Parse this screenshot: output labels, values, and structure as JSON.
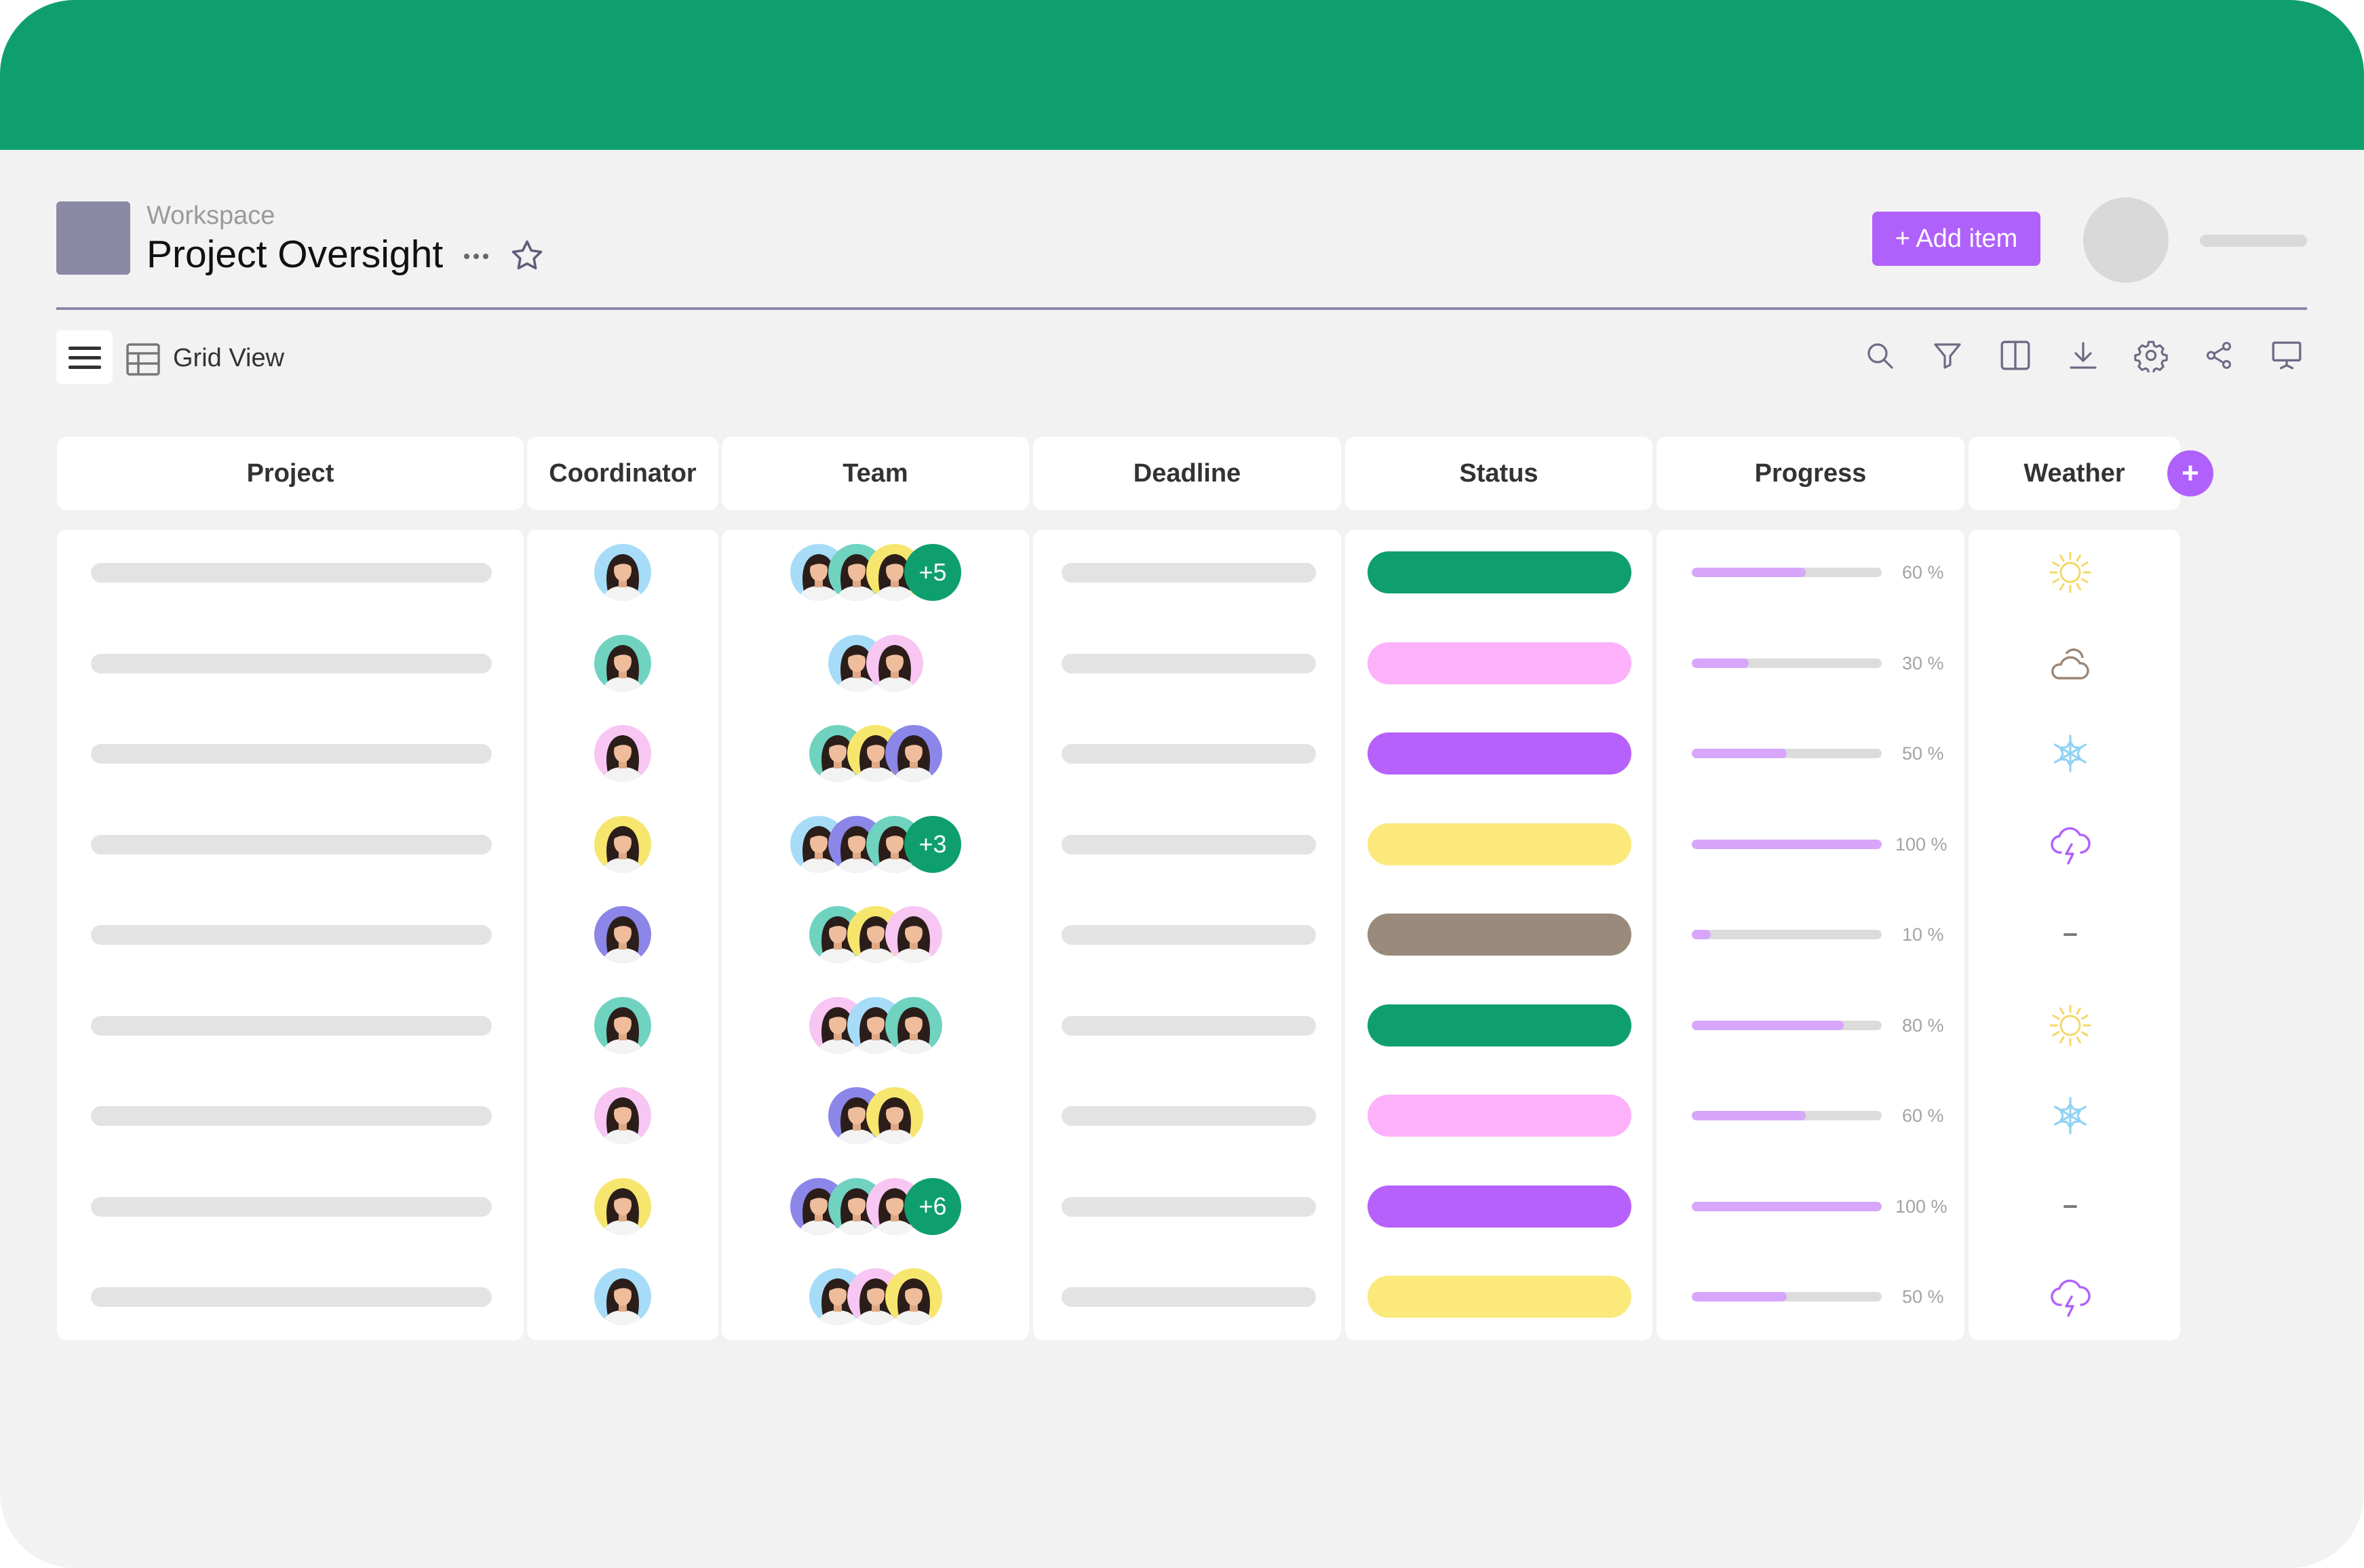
{
  "workspace": {
    "label": "Workspace",
    "title": "Project Oversight"
  },
  "header": {
    "add_item_label": "+ Add item"
  },
  "toolbar": {
    "view_label": "Grid View",
    "tools": [
      "search-icon",
      "filter-icon",
      "columns-icon",
      "download-icon",
      "settings-icon",
      "share-icon",
      "present-icon"
    ]
  },
  "columns": [
    "Project",
    "Coordinator",
    "Team",
    "Deadline",
    "Status",
    "Progress",
    "Weather"
  ],
  "add_column_label": "+",
  "colors": {
    "brand": "#0f9f6e",
    "accent": "#b061fb",
    "status_green": "#0f9f6e",
    "status_pink": "#fdb1fb",
    "status_purple": "#b661fb",
    "status_yellow": "#fbe97c",
    "status_brown": "#998a7c"
  },
  "rows": [
    {
      "coordinator": "blue",
      "team": [
        "blue",
        "teal",
        "yellow"
      ],
      "team_extra": "+5",
      "status": "#0f9f6e",
      "progress": 60,
      "progress_label": "60 %",
      "weather": "sun-icon"
    },
    {
      "coordinator": "teal",
      "team": [
        "blue",
        "pink"
      ],
      "team_extra": "",
      "status": "#fdb1fb",
      "progress": 30,
      "progress_label": "30 %",
      "weather": "partly-cloudy-icon"
    },
    {
      "coordinator": "pink",
      "team": [
        "teal",
        "yellow",
        "indigo"
      ],
      "team_extra": "",
      "status": "#b661fb",
      "progress": 50,
      "progress_label": "50 %",
      "weather": "snowflake-icon"
    },
    {
      "coordinator": "yellow",
      "team": [
        "blue",
        "indigo",
        "teal"
      ],
      "team_extra": "+3",
      "status": "#fbe97c",
      "progress": 100,
      "progress_label": "100 %",
      "weather": "storm-icon"
    },
    {
      "coordinator": "indigo",
      "team": [
        "teal",
        "yellow",
        "pink"
      ],
      "team_extra": "",
      "status": "#998a7c",
      "progress": 10,
      "progress_label": "10 %",
      "weather": "dash"
    },
    {
      "coordinator": "teal",
      "team": [
        "pink",
        "blue",
        "teal"
      ],
      "team_extra": "",
      "status": "#0f9f6e",
      "progress": 80,
      "progress_label": "80 %",
      "weather": "sun-icon"
    },
    {
      "coordinator": "pink",
      "team": [
        "indigo",
        "yellow"
      ],
      "team_extra": "",
      "status": "#fdb1fb",
      "progress": 60,
      "progress_label": "60 %",
      "weather": "snowflake-icon"
    },
    {
      "coordinator": "yellow",
      "team": [
        "indigo",
        "teal",
        "pink"
      ],
      "team_extra": "+6",
      "status": "#b661fb",
      "progress": 100,
      "progress_label": "100 %",
      "weather": "dash"
    },
    {
      "coordinator": "blue",
      "team": [
        "blue",
        "pink",
        "yellow"
      ],
      "team_extra": "",
      "status": "#fbe97c",
      "progress": 50,
      "progress_label": "50 %",
      "weather": "storm-icon"
    }
  ],
  "avatar_colors": {
    "blue": "#a6dcf8",
    "teal": "#6fd3c0",
    "pink": "#f8c6f2",
    "yellow": "#f7e66e",
    "indigo": "#8b86e8"
  }
}
